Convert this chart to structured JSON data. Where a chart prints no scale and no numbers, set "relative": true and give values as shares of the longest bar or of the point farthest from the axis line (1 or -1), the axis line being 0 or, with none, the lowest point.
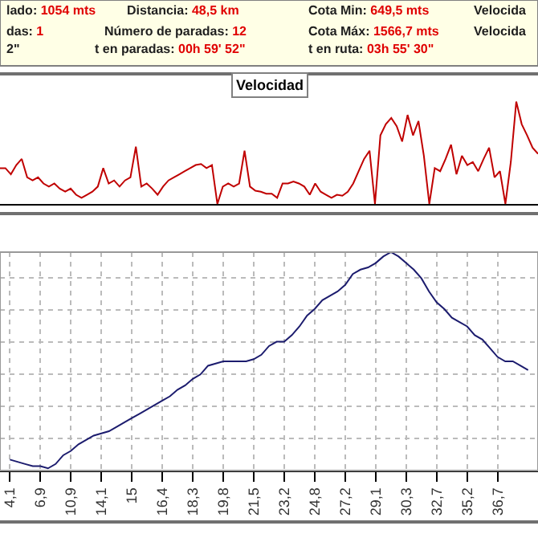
{
  "chart_data": [
    {
      "type": "other",
      "annotations": [
        "lado: 1054 mts",
        "Distancia: 48,5 km",
        "Cota Min: 649,5 mts",
        "Velocida",
        "das: 1",
        "Número de paradas: 12",
        "Cota Máx: 1566,7 mts",
        "Velocida",
        "2\"",
        "t en paradas: 00h 59' 52\"",
        "t en ruta: 03h 55' 30\""
      ]
    },
    {
      "type": "line",
      "title": "Velocidad",
      "relative": true,
      "categories": [
        null,
        null,
        null,
        null,
        null,
        null,
        null,
        null,
        null,
        null,
        null,
        null,
        null,
        null,
        null,
        null,
        null,
        null,
        null,
        null,
        null,
        null,
        null,
        null,
        null,
        null,
        null,
        null,
        null,
        null,
        null,
        null,
        null,
        null,
        null,
        null,
        null,
        null,
        null,
        null,
        null,
        null,
        null,
        null,
        null,
        null,
        null,
        null,
        null,
        null,
        null,
        null,
        null,
        null,
        null,
        null,
        null,
        null,
        null,
        null,
        null,
        null,
        null,
        null,
        null,
        null,
        null,
        null,
        null,
        null,
        null,
        null,
        null,
        null,
        null,
        null,
        null,
        null,
        null,
        null,
        null,
        null,
        null,
        null,
        null,
        null,
        null,
        null,
        null,
        null,
        null,
        null,
        null,
        null,
        null,
        null,
        null,
        null,
        null,
        null
      ],
      "series": [
        {
          "color": "#c00000",
          "values": [
            0.35,
            0.35,
            0.29,
            0.38,
            0.44,
            0.26,
            0.23,
            0.26,
            0.2,
            0.17,
            0.2,
            0.15,
            0.12,
            0.15,
            0.09,
            0.06,
            0.09,
            0.12,
            0.17,
            0.35,
            0.2,
            0.23,
            0.17,
            0.23,
            0.26,
            0.56,
            0.17,
            0.2,
            0.15,
            0.09,
            0.17,
            0.23,
            0.26,
            0.29,
            0.32,
            0.35,
            0.38,
            0.39,
            0.35,
            0.38,
            0,
            0.17,
            0.2,
            0.17,
            0.2,
            0.52,
            0.17,
            0.13,
            0.12,
            0.1,
            0.1,
            0.06,
            0.2,
            0.2,
            0.22,
            0.2,
            0.17,
            0.09,
            0.2,
            0.12,
            0.09,
            0.06,
            0.09,
            0.08,
            0.12,
            0.2,
            0.32,
            0.44,
            0.52,
            0,
            0.67,
            0.78,
            0.84,
            0.76,
            0.61,
            0.87,
            0.67,
            0.81,
            0.47,
            0,
            0.35,
            0.32,
            0.44,
            0.58,
            0.29,
            0.47,
            0.38,
            0.41,
            0.32,
            0.44,
            0.55,
            0.26,
            0.32,
            0,
            0.41,
            1,
            0.78,
            0.67,
            0.55,
            0.49
          ]
        }
      ]
    },
    {
      "type": "line",
      "relative": true,
      "grid": true,
      "categories": [
        "4,1",
        null,
        null,
        null,
        "6,9",
        null,
        null,
        null,
        "10,9",
        null,
        null,
        null,
        "14,1",
        null,
        null,
        null,
        "15",
        null,
        null,
        null,
        "16,4",
        null,
        null,
        null,
        "18,3",
        null,
        null,
        null,
        "19,8",
        null,
        null,
        null,
        "21,5",
        null,
        null,
        null,
        "23,2",
        null,
        null,
        null,
        "24,8",
        null,
        null,
        null,
        "27,2",
        null,
        null,
        null,
        "29,1",
        null,
        null,
        null,
        "30,3",
        null,
        null,
        null,
        "32,7",
        null,
        null,
        null,
        "35,2",
        null,
        null,
        null,
        "36,7",
        null,
        null,
        null,
        null
      ],
      "series": [
        {
          "color": "#1c1c6e",
          "values": [
            0.05,
            0.04,
            0.03,
            0.02,
            0.02,
            0.01,
            0.03,
            0.07,
            0.09,
            0.12,
            0.14,
            0.16,
            0.17,
            0.18,
            0.2,
            0.22,
            0.24,
            0.26,
            0.28,
            0.3,
            0.32,
            0.34,
            0.37,
            0.39,
            0.42,
            0.44,
            0.48,
            0.49,
            0.5,
            0.5,
            0.5,
            0.5,
            0.51,
            0.53,
            0.57,
            0.59,
            0.59,
            0.62,
            0.66,
            0.71,
            0.74,
            0.78,
            0.8,
            0.82,
            0.85,
            0.9,
            0.92,
            0.93,
            0.95,
            0.98,
            1,
            0.98,
            0.95,
            0.92,
            0.88,
            0.82,
            0.77,
            0.74,
            0.7,
            0.68,
            0.66,
            0.62,
            0.6,
            0.56,
            0.52,
            0.5,
            0.5,
            0.48,
            0.46
          ]
        }
      ]
    }
  ]
}
